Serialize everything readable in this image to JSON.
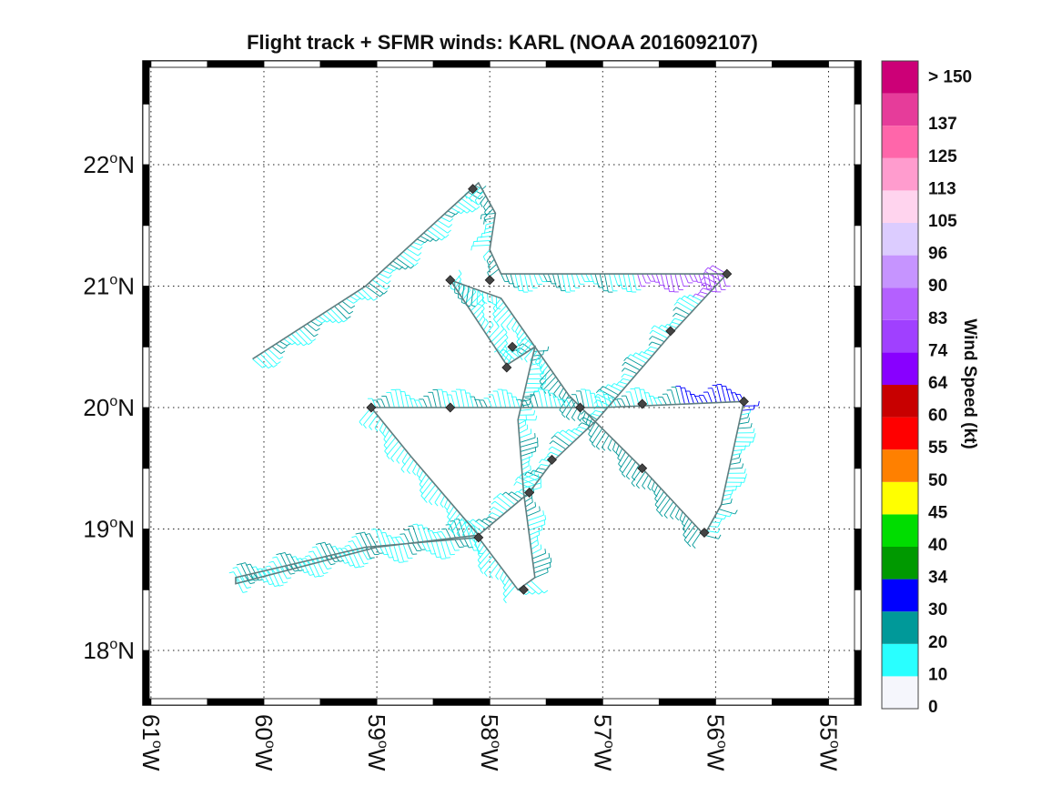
{
  "title": "Flight track + SFMR winds: KARL (NOAA 2016092107)",
  "map": {
    "lon_range": [
      -61,
      -54.8
    ],
    "lat_range": [
      17.5,
      22.85
    ],
    "lat_ticks": [
      {
        "value": 18,
        "num": "18",
        "hemi": "N"
      },
      {
        "value": 19,
        "num": "19",
        "hemi": "N"
      },
      {
        "value": 20,
        "num": "20",
        "hemi": "N"
      },
      {
        "value": 21,
        "num": "21",
        "hemi": "N"
      },
      {
        "value": 22,
        "num": "22",
        "hemi": "N"
      }
    ],
    "lon_ticks": [
      {
        "value": -61,
        "num": "61",
        "hemi": "W"
      },
      {
        "value": -60,
        "num": "60",
        "hemi": "W"
      },
      {
        "value": -59,
        "num": "59",
        "hemi": "W"
      },
      {
        "value": -58,
        "num": "58",
        "hemi": "W"
      },
      {
        "value": -57,
        "num": "57",
        "hemi": "W"
      },
      {
        "value": -56,
        "num": "56",
        "hemi": "W"
      },
      {
        "value": -55,
        "num": "55",
        "hemi": "W"
      }
    ],
    "degree_symbol": "o",
    "grid": "dotted"
  },
  "colorbar": {
    "title": "Wind Speed (kt)",
    "labels": [
      "0",
      "10",
      "20",
      "30",
      "34",
      "40",
      "45",
      "50",
      "55",
      "60",
      "64",
      "74",
      "83",
      "90",
      "96",
      "105",
      "113",
      "125",
      "137",
      "> 150"
    ],
    "colors": [
      "#f5f6fc",
      "#29ffff",
      "#009999",
      "#0000ff",
      "#009900",
      "#00dd00",
      "#ffff00",
      "#ff8000",
      "#ff0000",
      "#c80000",
      "#8800ff",
      "#a040ff",
      "#b460ff",
      "#c694ff",
      "#dcccff",
      "#ffd4ee",
      "#ff9cce",
      "#ff66aa",
      "#e63c9a",
      "#cc0077"
    ]
  },
  "chart_data": {
    "type": "map-track",
    "track": [
      [
        -60.1,
        20.4
      ],
      [
        -59.1,
        21.0
      ],
      [
        -58.1,
        21.85
      ],
      [
        -57.95,
        21.6
      ],
      [
        -58.0,
        21.3
      ],
      [
        -57.9,
        21.1
      ],
      [
        -56.9,
        21.1
      ],
      [
        -55.9,
        21.1
      ],
      [
        -56.4,
        20.6
      ],
      [
        -57.05,
        19.9
      ],
      [
        -57.45,
        19.55
      ],
      [
        -57.65,
        19.3
      ],
      [
        -58.1,
        18.95
      ],
      [
        -59.0,
        18.85
      ],
      [
        -60.25,
        18.55
      ],
      [
        -60.25,
        18.6
      ],
      [
        -59.1,
        18.85
      ],
      [
        -58.1,
        18.93
      ],
      [
        -57.75,
        18.5
      ],
      [
        -57.6,
        18.6
      ],
      [
        -57.7,
        19.3
      ],
      [
        -57.75,
        19.9
      ],
      [
        -57.6,
        20.5
      ],
      [
        -57.85,
        20.35
      ],
      [
        -58.35,
        21.05
      ],
      [
        -57.9,
        20.9
      ],
      [
        -57.3,
        20.1
      ],
      [
        -56.65,
        19.5
      ],
      [
        -56.1,
        18.95
      ],
      [
        -55.95,
        19.2
      ],
      [
        -55.75,
        20.05
      ],
      [
        -57.0,
        20.0
      ],
      [
        -58.35,
        20.0
      ],
      [
        -59.05,
        20.0
      ],
      [
        -58.7,
        19.6
      ],
      [
        -58.1,
        18.95
      ]
    ],
    "markers": [
      [
        -58.15,
        21.8
      ],
      [
        -58.35,
        21.05
      ],
      [
        -58.0,
        21.05
      ],
      [
        -55.9,
        21.1
      ],
      [
        -56.4,
        20.63
      ],
      [
        -57.8,
        20.5
      ],
      [
        -57.85,
        20.33
      ],
      [
        -59.05,
        20.0
      ],
      [
        -58.35,
        20.0
      ],
      [
        -57.2,
        20.0
      ],
      [
        -56.65,
        20.03
      ],
      [
        -55.75,
        20.05
      ],
      [
        -57.45,
        19.57
      ],
      [
        -56.65,
        19.5
      ],
      [
        -57.65,
        19.3
      ],
      [
        -58.1,
        18.93
      ],
      [
        -56.1,
        18.97
      ],
      [
        -57.7,
        18.5
      ]
    ]
  }
}
